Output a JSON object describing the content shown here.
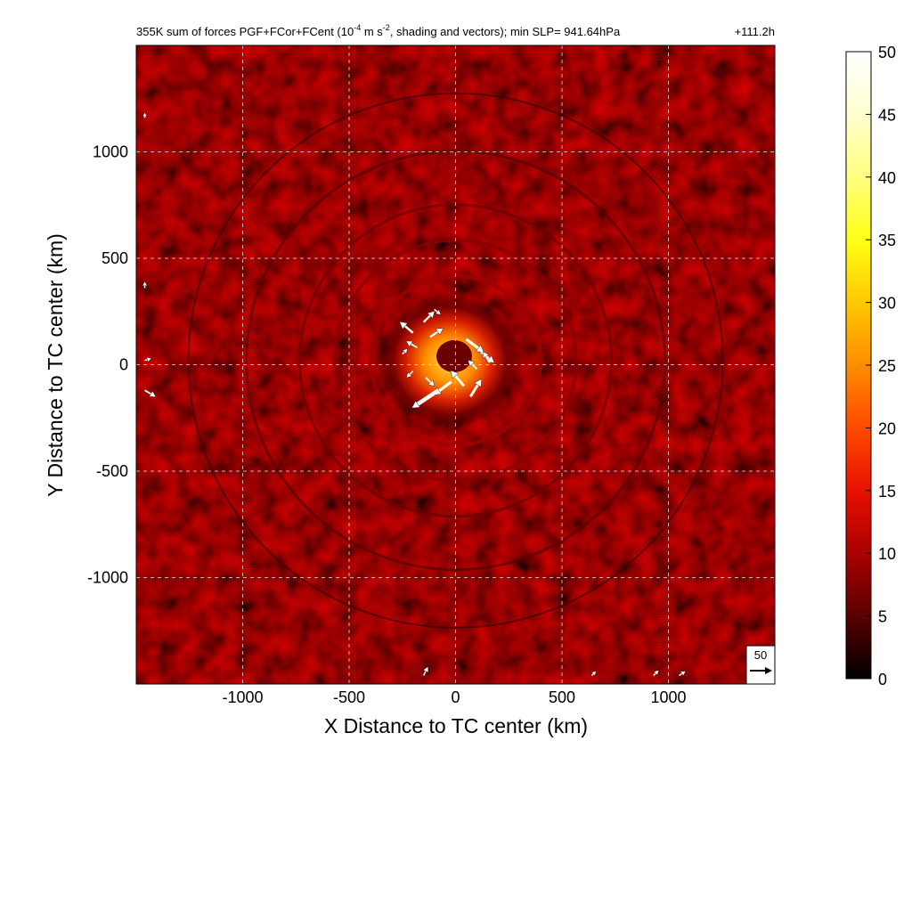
{
  "figure": {
    "title": "355K sum of forces PGF+FCor+FCent (10",
    "title_exp": "-4",
    "title_mid": " m s",
    "title_exp2": "-2",
    "title_end": ", shading and vectors); min SLP= 941.64hPa",
    "time_label": "+111.2h"
  },
  "chart_data": {
    "type": "heatmap",
    "title": "355K sum of forces PGF+FCor+FCent (10^-4 m s^-2, shading and vectors); min SLP= 941.64hPa",
    "annotation": "+111.2h",
    "xlabel": "X Distance to TC center (km)",
    "ylabel": "Y Distance to TC center (km)",
    "xlim": [
      -1500,
      1500
    ],
    "ylim": [
      -1500,
      1500
    ],
    "xticks": [
      -1000,
      -500,
      0,
      500,
      1000
    ],
    "yticks": [
      -1000,
      -500,
      0,
      500,
      1000
    ],
    "xtick_labels": [
      "-1000",
      "-500",
      "0",
      "500",
      "1000"
    ],
    "ytick_labels": [
      "-1000",
      "-500",
      "0",
      "500",
      "1000"
    ],
    "grid": true,
    "colorbar": {
      "min": 0,
      "max": 50,
      "ticks": [
        0,
        5,
        10,
        15,
        20,
        25,
        30,
        35,
        40,
        45,
        50
      ],
      "tick_labels": [
        "0",
        "5",
        "10",
        "15",
        "20",
        "25",
        "30",
        "35",
        "40",
        "45",
        "50"
      ],
      "colormap": "hot",
      "colors": [
        "#000000",
        "#5a0000",
        "#aa0000",
        "#e81000",
        "#ff4a00",
        "#ff8c00",
        "#ffc800",
        "#ffff14",
        "#ffff80",
        "#ffffd0",
        "#ffffff"
      ]
    },
    "reference_vector": {
      "label": "50",
      "value": 50
    },
    "vectors": [
      {
        "x": -200,
        "y": 150,
        "u": -30,
        "v": 25
      },
      {
        "x": -150,
        "y": 200,
        "u": 25,
        "v": 25
      },
      {
        "x": -120,
        "y": 130,
        "u": 30,
        "v": 20
      },
      {
        "x": -250,
        "y": 50,
        "u": 12,
        "v": 12
      },
      {
        "x": -180,
        "y": 80,
        "u": -25,
        "v": 15
      },
      {
        "x": -100,
        "y": 260,
        "u": 15,
        "v": -12
      },
      {
        "x": 50,
        "y": 120,
        "u": 40,
        "v": -30
      },
      {
        "x": 120,
        "y": 60,
        "u": 30,
        "v": -25
      },
      {
        "x": 160,
        "y": 10,
        "u": -15,
        "v": 25
      },
      {
        "x": 100,
        "y": -20,
        "u": -20,
        "v": 20
      },
      {
        "x": -20,
        "y": -80,
        "u": -40,
        "v": -30
      },
      {
        "x": -80,
        "y": -120,
        "u": -60,
        "v": -40
      },
      {
        "x": 40,
        "y": -100,
        "u": -30,
        "v": 35
      },
      {
        "x": 70,
        "y": -150,
        "u": 25,
        "v": 40
      },
      {
        "x": -140,
        "y": -60,
        "u": 20,
        "v": -20
      },
      {
        "x": -200,
        "y": -30,
        "u": -15,
        "v": -15
      },
      {
        "x": -1460,
        "y": -120,
        "u": 25,
        "v": -15
      },
      {
        "x": -1460,
        "y": 20,
        "u": 15,
        "v": 5
      },
      {
        "x": -1460,
        "y": 360,
        "u": 0,
        "v": 15
      },
      {
        "x": -1460,
        "y": 1160,
        "u": 0,
        "v": 12
      },
      {
        "x": -150,
        "y": -1460,
        "u": 10,
        "v": 20
      },
      {
        "x": 1050,
        "y": -1460,
        "u": 15,
        "v": 10
      },
      {
        "x": 930,
        "y": -1460,
        "u": 12,
        "v": 12
      },
      {
        "x": 640,
        "y": -1460,
        "u": 10,
        "v": 10
      }
    ]
  }
}
